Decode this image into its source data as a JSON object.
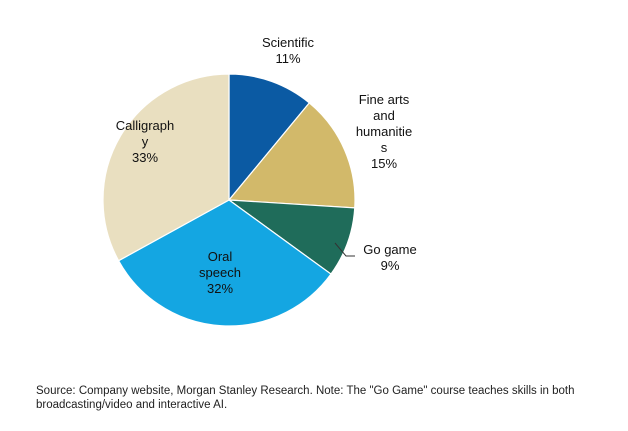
{
  "chart_data": {
    "type": "pie",
    "title": "",
    "start_angle_deg": 0,
    "direction": "clockwise",
    "slices": [
      {
        "key": "scientific",
        "label_lines": [
          "Scientific"
        ],
        "value": 11,
        "value_label": "11%",
        "color": "#0b5aa3"
      },
      {
        "key": "fine-arts",
        "label_lines": [
          "Fine arts",
          "and",
          "humanitie",
          "s"
        ],
        "value": 15,
        "value_label": "15%",
        "color": "#d2b96a"
      },
      {
        "key": "go-game",
        "label_lines": [
          "Go game"
        ],
        "value": 9,
        "value_label": "9%",
        "color": "#1f6c5a"
      },
      {
        "key": "oral-speech",
        "label_lines": [
          "Oral",
          "speech"
        ],
        "value": 32,
        "value_label": "32%",
        "color": "#14a6e2"
      },
      {
        "key": "calligraphy",
        "label_lines": [
          "Calligraph",
          "y"
        ],
        "value": 33,
        "value_label": "33%",
        "color": "#e9dfc0"
      }
    ]
  },
  "source_note": "Source: Company website, Morgan Stanley Research. Note: The \"Go Game\" course teaches skills in both broadcasting/video and interactive AI."
}
